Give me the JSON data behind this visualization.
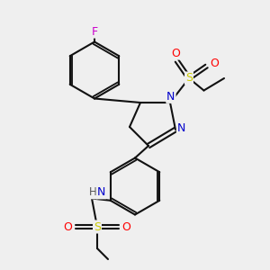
{
  "bg_color": "#efefef",
  "atom_colors": {
    "C": "#000000",
    "N": "#0000cc",
    "O": "#ff0000",
    "S": "#cccc00",
    "F": "#cc00cc",
    "H": "#555555"
  },
  "bond_color": "#111111",
  "bond_width": 1.5,
  "figsize": [
    3.0,
    3.0
  ],
  "dpi": 100
}
